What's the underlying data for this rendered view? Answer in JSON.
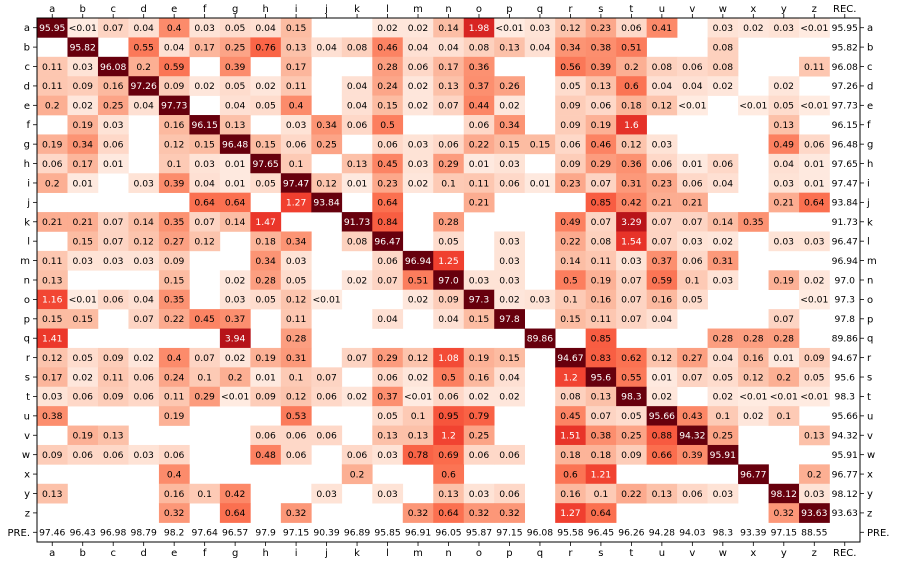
{
  "chart_data": {
    "type": "heatmap",
    "columns": [
      "a",
      "b",
      "c",
      "d",
      "e",
      "f",
      "g",
      "h",
      "i",
      "j",
      "k",
      "l",
      "m",
      "n",
      "o",
      "p",
      "q",
      "r",
      "s",
      "t",
      "u",
      "v",
      "w",
      "x",
      "y",
      "z",
      "REC."
    ],
    "rows": [
      "a",
      "b",
      "c",
      "d",
      "e",
      "f",
      "g",
      "h",
      "i",
      "j",
      "k",
      "l",
      "m",
      "n",
      "o",
      "p",
      "q",
      "r",
      "s",
      "t",
      "u",
      "v",
      "w",
      "x",
      "y",
      "z",
      "PRE."
    ],
    "top_left_label": "",
    "cells": [
      [
        "95.95",
        "<0.01",
        "0.07",
        "0.04",
        "0.4",
        "0.03",
        "0.05",
        "0.04",
        "0.15",
        "",
        "",
        "0.02",
        "0.02",
        "0.14",
        "1.98",
        "<0.01",
        "0.03",
        "0.12",
        "0.23",
        "0.06",
        "0.41",
        "",
        "0.03",
        "0.02",
        "0.03",
        "<0.01",
        "95.95"
      ],
      [
        "",
        "95.82",
        "",
        "0.55",
        "0.04",
        "0.17",
        "0.25",
        "0.76",
        "0.13",
        "0.04",
        "0.08",
        "0.46",
        "0.04",
        "0.04",
        "0.08",
        "0.13",
        "0.04",
        "0.34",
        "0.38",
        "0.51",
        "",
        "",
        "0.08",
        "",
        "",
        "",
        "95.82"
      ],
      [
        "0.11",
        "0.03",
        "96.08",
        "0.2",
        "0.59",
        "",
        "0.39",
        "",
        "0.17",
        "",
        "",
        "0.28",
        "0.06",
        "0.17",
        "0.36",
        "",
        "",
        "0.56",
        "0.39",
        "0.2",
        "0.08",
        "0.06",
        "0.08",
        "",
        "",
        "0.11",
        "96.08"
      ],
      [
        "0.11",
        "0.09",
        "0.16",
        "97.26",
        "0.09",
        "0.02",
        "0.05",
        "0.02",
        "0.11",
        "",
        "0.04",
        "0.24",
        "0.02",
        "0.13",
        "0.37",
        "0.26",
        "",
        "0.05",
        "0.13",
        "0.6",
        "0.04",
        "0.04",
        "0.02",
        "",
        "0.02",
        "",
        "97.26"
      ],
      [
        "0.2",
        "0.02",
        "0.25",
        "0.04",
        "97.73",
        "",
        "0.04",
        "0.05",
        "0.4",
        "",
        "0.04",
        "0.15",
        "0.02",
        "0.07",
        "0.44",
        "0.02",
        "",
        "0.09",
        "0.06",
        "0.18",
        "0.12",
        "<0.01",
        "",
        "<0.01",
        "0.05",
        "<0.01",
        "97.73"
      ],
      [
        "",
        "0.19",
        "0.03",
        "",
        "0.16",
        "96.15",
        "0.13",
        "",
        "0.03",
        "0.34",
        "0.06",
        "0.5",
        "",
        "",
        "0.06",
        "0.34",
        "",
        "0.09",
        "0.19",
        "1.6",
        "",
        "",
        "",
        "",
        "0.13",
        "",
        "96.15"
      ],
      [
        "0.19",
        "0.34",
        "0.06",
        "",
        "0.12",
        "0.15",
        "96.48",
        "0.15",
        "0.06",
        "0.25",
        "",
        "0.06",
        "0.03",
        "0.06",
        "0.22",
        "0.15",
        "0.15",
        "0.06",
        "0.46",
        "0.12",
        "0.03",
        "",
        "",
        "",
        "0.49",
        "0.06",
        "96.48"
      ],
      [
        "0.06",
        "0.17",
        "0.01",
        "",
        "0.1",
        "0.03",
        "0.01",
        "97.65",
        "0.1",
        "",
        "0.13",
        "0.45",
        "0.03",
        "0.29",
        "0.01",
        "0.03",
        "",
        "0.09",
        "0.29",
        "0.36",
        "0.06",
        "0.01",
        "0.06",
        "",
        "0.04",
        "0.01",
        "97.65"
      ],
      [
        "0.2",
        "0.01",
        "",
        "0.03",
        "0.39",
        "0.04",
        "0.01",
        "0.05",
        "97.47",
        "0.12",
        "0.01",
        "0.23",
        "0.02",
        "0.1",
        "0.11",
        "0.06",
        "0.01",
        "0.23",
        "0.07",
        "0.31",
        "0.23",
        "0.06",
        "0.04",
        "",
        "0.03",
        "0.01",
        "97.47"
      ],
      [
        "",
        "",
        "",
        "",
        "",
        "0.64",
        "0.64",
        "",
        "1.27",
        "93.84",
        "",
        "0.64",
        "",
        "",
        "0.21",
        "",
        "",
        "",
        "0.85",
        "0.42",
        "0.21",
        "0.21",
        "",
        "",
        "0.21",
        "0.64",
        "93.84"
      ],
      [
        "0.21",
        "0.21",
        "0.07",
        "0.14",
        "0.35",
        "0.07",
        "0.14",
        "1.47",
        "",
        "",
        "91.73",
        "0.84",
        "",
        "0.28",
        "",
        "",
        "",
        "0.49",
        "0.07",
        "3.29",
        "0.07",
        "0.07",
        "0.14",
        "0.35",
        "",
        "",
        "91.73"
      ],
      [
        "",
        "0.15",
        "0.07",
        "0.12",
        "0.27",
        "0.12",
        "",
        "0.18",
        "0.34",
        "",
        "0.08",
        "96.47",
        "",
        "0.05",
        "",
        "0.03",
        "",
        "0.22",
        "0.08",
        "1.54",
        "0.07",
        "0.03",
        "0.02",
        "",
        "0.03",
        "0.03",
        "96.47"
      ],
      [
        "0.11",
        "0.03",
        "0.03",
        "0.03",
        "0.09",
        "",
        "",
        "0.34",
        "0.03",
        "",
        "",
        "0.06",
        "96.94",
        "1.25",
        "",
        "0.03",
        "",
        "0.14",
        "0.11",
        "0.03",
        "0.37",
        "0.06",
        "0.31",
        "",
        "",
        "",
        "96.94"
      ],
      [
        "0.13",
        "",
        "",
        "",
        "0.15",
        "",
        "0.02",
        "0.28",
        "0.05",
        "",
        "0.02",
        "0.07",
        "0.51",
        "97.0",
        "0.03",
        "0.03",
        "",
        "0.5",
        "0.19",
        "0.07",
        "0.59",
        "0.1",
        "0.03",
        "",
        "0.19",
        "0.02",
        "97.0"
      ],
      [
        "1.16",
        "<0.01",
        "0.06",
        "0.04",
        "0.35",
        "",
        "0.03",
        "0.05",
        "0.12",
        "<0.01",
        "",
        "",
        "0.02",
        "0.09",
        "97.3",
        "0.02",
        "0.03",
        "0.1",
        "0.16",
        "0.07",
        "0.16",
        "0.05",
        "",
        "",
        "",
        "<0.01",
        "97.3"
      ],
      [
        "0.15",
        "0.15",
        "",
        "0.07",
        "0.22",
        "0.45",
        "0.37",
        "",
        "0.11",
        "",
        "",
        "0.04",
        "",
        "0.04",
        "0.15",
        "97.8",
        "",
        "0.15",
        "0.11",
        "0.07",
        "0.04",
        "",
        "",
        "",
        "0.07",
        "",
        "97.8"
      ],
      [
        "1.41",
        "",
        "",
        "",
        "",
        "",
        "3.94",
        "",
        "0.28",
        "",
        "",
        "",
        "",
        "",
        "",
        "",
        "89.86",
        "",
        "0.85",
        "",
        "",
        "",
        "0.28",
        "0.28",
        "0.28",
        "",
        "89.86"
      ],
      [
        "0.12",
        "0.05",
        "0.09",
        "0.02",
        "0.4",
        "0.07",
        "0.02",
        "0.19",
        "0.31",
        "",
        "0.07",
        "0.29",
        "0.12",
        "1.08",
        "0.19",
        "0.15",
        "",
        "94.67",
        "0.83",
        "0.62",
        "0.12",
        "0.27",
        "0.04",
        "0.16",
        "0.01",
        "0.09",
        "94.67"
      ],
      [
        "0.17",
        "0.02",
        "0.11",
        "0.06",
        "0.24",
        "0.1",
        "0.2",
        "0.01",
        "0.1",
        "0.07",
        "",
        "0.06",
        "0.02",
        "0.5",
        "0.16",
        "0.04",
        "",
        "1.2",
        "95.6",
        "0.55",
        "0.01",
        "0.07",
        "0.05",
        "0.12",
        "0.2",
        "0.05",
        "95.6"
      ],
      [
        "0.03",
        "0.06",
        "0.09",
        "0.06",
        "0.11",
        "0.29",
        "<0.01",
        "0.09",
        "0.12",
        "0.06",
        "0.02",
        "0.37",
        "<0.01",
        "0.06",
        "0.02",
        "0.02",
        "",
        "0.08",
        "0.13",
        "98.3",
        "0.02",
        "",
        "0.02",
        "<0.01",
        "<0.01",
        "<0.01",
        "98.3"
      ],
      [
        "0.38",
        "",
        "",
        "",
        "0.19",
        "",
        "",
        "",
        "0.53",
        "",
        "",
        "0.05",
        "0.1",
        "0.95",
        "0.79",
        "",
        "",
        "0.45",
        "0.07",
        "0.05",
        "95.66",
        "0.43",
        "0.1",
        "0.02",
        "0.1",
        "",
        "95.66"
      ],
      [
        "",
        "0.19",
        "0.13",
        "",
        "",
        "",
        "",
        "0.06",
        "0.06",
        "0.06",
        "",
        "0.13",
        "0.13",
        "1.2",
        "0.25",
        "",
        "",
        "1.51",
        "0.38",
        "0.25",
        "0.88",
        "94.32",
        "0.25",
        "",
        "",
        "0.13",
        "94.32"
      ],
      [
        "0.09",
        "0.06",
        "0.06",
        "0.03",
        "0.06",
        "",
        "",
        "0.48",
        "0.06",
        "",
        "0.06",
        "0.03",
        "0.78",
        "0.69",
        "0.06",
        "0.06",
        "",
        "0.18",
        "0.18",
        "0.09",
        "0.66",
        "0.39",
        "95.91",
        "",
        "",
        "",
        "95.91"
      ],
      [
        "",
        "",
        "",
        "",
        "0.4",
        "",
        "",
        "",
        "",
        "",
        "0.2",
        "",
        "",
        "0.6",
        "",
        "",
        "",
        "0.6",
        "1.21",
        "",
        "",
        "",
        "",
        "96.77",
        "",
        "0.2",
        "96.77"
      ],
      [
        "0.13",
        "",
        "",
        "",
        "0.16",
        "0.1",
        "0.42",
        "",
        "",
        "0.03",
        "",
        "0.03",
        "",
        "0.13",
        "0.03",
        "0.06",
        "",
        "0.16",
        "0.1",
        "0.22",
        "0.13",
        "0.06",
        "0.03",
        "",
        "98.12",
        "0.03",
        "98.12"
      ],
      [
        "",
        "",
        "",
        "",
        "0.32",
        "",
        "0.64",
        "",
        "0.32",
        "",
        "",
        "",
        "0.32",
        "0.64",
        "0.32",
        "0.32",
        "",
        "1.27",
        "0.64",
        "",
        "",
        "",
        "",
        "",
        "0.32",
        "93.63",
        "93.63"
      ],
      [
        "97.46",
        "96.43",
        "96.98",
        "98.79",
        "98.2",
        "97.64",
        "96.57",
        "97.9",
        "97.15",
        "90.39",
        "96.89",
        "95.85",
        "96.91",
        "96.05",
        "95.87",
        "97.15",
        "96.08",
        "95.58",
        "96.45",
        "96.26",
        "94.28",
        "94.03",
        "98.3",
        "93.39",
        "97.15",
        "88.55",
        ""
      ]
    ],
    "colorscale": {
      "name": "Reds",
      "stops": [
        [
          0.0,
          "#fff5f0"
        ],
        [
          0.125,
          "#fee0d2"
        ],
        [
          0.25,
          "#fcbba1"
        ],
        [
          0.375,
          "#fc9272"
        ],
        [
          0.5,
          "#fb6a4a"
        ],
        [
          0.625,
          "#ef3b2c"
        ],
        [
          0.75,
          "#cb181d"
        ],
        [
          0.875,
          "#a50f15"
        ],
        [
          1.0,
          "#67000d"
        ]
      ]
    },
    "grid": false,
    "legend": "none"
  }
}
